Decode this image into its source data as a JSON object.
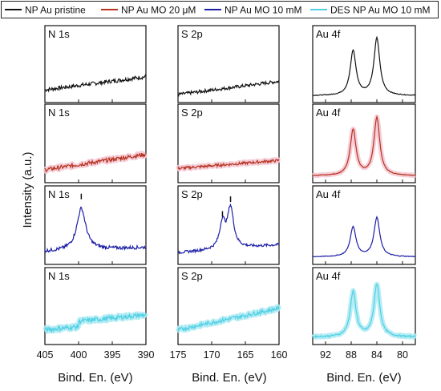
{
  "legend": [
    {
      "label": "NP Au pristine",
      "color": "#111111"
    },
    {
      "label": "NP Au MO 20 μM",
      "color": "#b5331f"
    },
    {
      "label": "NP Au MO 10 mM",
      "color": "#1c1fa6"
    },
    {
      "label": "DES NP Au MO 10 mM",
      "color": "#4fd0e4"
    }
  ],
  "ylabel": "Intensity (a.u.)",
  "columns": [
    {
      "label": "N 1s",
      "xlabel": "Bind. En. (eV)",
      "xlim": [
        405,
        390
      ],
      "ticks": [
        "405",
        "400",
        "395",
        "390"
      ],
      "tick_values": [
        405,
        400,
        395,
        390
      ]
    },
    {
      "label": "S 2p",
      "xlabel": "Bind. En. (eV)",
      "xlim": [
        175,
        160
      ],
      "ticks": [
        "175",
        "170",
        "165",
        "160"
      ],
      "tick_values": [
        175,
        170,
        165,
        160
      ]
    },
    {
      "label": "Au 4f",
      "xlabel": "Bind. En. (eV)",
      "xlim": [
        94,
        78
      ],
      "ticks": [
        "92",
        "88",
        "84",
        "80"
      ],
      "tick_values": [
        92,
        88,
        84,
        80
      ]
    }
  ],
  "chart_data": {
    "type": "line",
    "ylabel": "Intensity (a.u.)",
    "panels": [
      {
        "row": 0,
        "col": 0,
        "series": "NP Au pristine",
        "baseline": [
          0.12,
          0.32
        ],
        "peaks": [],
        "noise": 0.03
      },
      {
        "row": 0,
        "col": 1,
        "series": "NP Au pristine",
        "baseline": [
          0.05,
          0.25
        ],
        "peaks": [],
        "noise": 0.025
      },
      {
        "row": 0,
        "col": 2,
        "series": "NP Au pristine",
        "baseline": [
          0.03,
          0.03
        ],
        "peaks": [
          {
            "x": 87.7,
            "h": 0.68,
            "w": 0.55
          },
          {
            "x": 84.0,
            "h": 0.87,
            "w": 0.55
          }
        ],
        "noise": 0.005
      },
      {
        "row": 1,
        "col": 0,
        "series": "NP Au MO 20 μM",
        "baseline": [
          0.12,
          0.35
        ],
        "peaks": [],
        "noise": 0.03
      },
      {
        "row": 1,
        "col": 1,
        "series": "NP Au MO 20 μM",
        "baseline": [
          0.14,
          0.26
        ],
        "peaks": [],
        "noise": 0.02
      },
      {
        "row": 1,
        "col": 2,
        "series": "NP Au MO 20 μM",
        "baseline": [
          0.03,
          0.03
        ],
        "peaks": [
          {
            "x": 87.7,
            "h": 0.68,
            "w": 0.55
          },
          {
            "x": 84.0,
            "h": 0.86,
            "w": 0.55
          }
        ],
        "noise": 0.005
      },
      {
        "row": 2,
        "col": 0,
        "series": "NP Au MO 10 mM",
        "baseline": [
          0.12,
          0.18
        ],
        "peaks": [
          {
            "x": 399.6,
            "h": 0.62,
            "w": 0.8
          }
        ],
        "noise": 0.025,
        "markers": [
          399.6
        ]
      },
      {
        "row": 2,
        "col": 1,
        "series": "NP Au MO 10 mM",
        "baseline": [
          0.1,
          0.22
        ],
        "peaks": [
          {
            "x": 168.4,
            "h": 0.38,
            "w": 0.5
          },
          {
            "x": 167.2,
            "h": 0.6,
            "w": 0.55
          }
        ],
        "noise": 0.02,
        "markers": [
          168.4,
          167.2
        ]
      },
      {
        "row": 2,
        "col": 2,
        "series": "NP Au MO 10 mM",
        "baseline": [
          0.04,
          0.04
        ],
        "peaks": [
          {
            "x": 87.7,
            "h": 0.44,
            "w": 0.55
          },
          {
            "x": 84.0,
            "h": 0.58,
            "w": 0.55
          }
        ],
        "noise": 0.005
      },
      {
        "row": 3,
        "col": 0,
        "series": "DES NP Au MO 10 mM",
        "baseline": [
          0.15,
          0.3
        ],
        "peaks": [],
        "noise": 0.035,
        "step": {
          "x": 400,
          "h": 0.08
        }
      },
      {
        "row": 3,
        "col": 1,
        "series": "DES NP Au MO 10 mM",
        "baseline": [
          0.15,
          0.48
        ],
        "peaks": [],
        "noise": 0.03
      },
      {
        "row": 3,
        "col": 2,
        "series": "DES NP Au MO 10 mM",
        "baseline": [
          0.04,
          0.04
        ],
        "peaks": [
          {
            "x": 87.7,
            "h": 0.68,
            "w": 0.55
          },
          {
            "x": 84.0,
            "h": 0.8,
            "w": 0.55
          }
        ],
        "noise": 0.012
      }
    ]
  }
}
